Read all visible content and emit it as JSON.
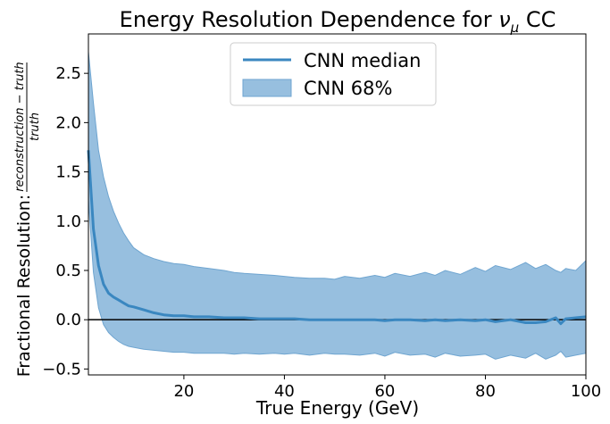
{
  "chart_data": {
    "type": "area",
    "title_prefix": "Energy Resolution Dependence for ",
    "title_symbol": "ν",
    "title_subscript": "μ",
    "title_suffix": " CC",
    "xlabel": "True Energy (GeV)",
    "ylabel_prefix": "Fractional Resolution: ",
    "ylabel_numerator": "reconstruction − truth",
    "ylabel_denominator": "truth",
    "xlim": [
      1,
      100
    ],
    "ylim": [
      -0.56,
      2.9
    ],
    "x_ticks": [
      20,
      40,
      60,
      80,
      100
    ],
    "y_ticks": [
      -0.5,
      0.0,
      0.5,
      1.0,
      1.5,
      2.0,
      2.5
    ],
    "x_tick_labels": [
      "20",
      "40",
      "60",
      "80",
      "100"
    ],
    "y_tick_labels": [
      "−0.5",
      "0.0",
      "0.5",
      "1.0",
      "1.5",
      "2.0",
      "2.5"
    ],
    "reference_line_y": 0.0,
    "legend_position": "top-center",
    "colors": {
      "median": "#3a87c0",
      "band_fill": "#97bfdf",
      "band_edge": "#6fa5d0",
      "reference": "#000000"
    },
    "series": [
      {
        "name": "CNN median",
        "kind": "line",
        "x": [
          1,
          2,
          3,
          4,
          5,
          6,
          7,
          8,
          9,
          10,
          12,
          14,
          16,
          18,
          20,
          22,
          25,
          28,
          30,
          32,
          35,
          38,
          40,
          42,
          45,
          48,
          50,
          52,
          55,
          58,
          60,
          62,
          65,
          68,
          70,
          72,
          75,
          78,
          80,
          82,
          85,
          88,
          90,
          92,
          94,
          95,
          96,
          98,
          100
        ],
        "y": [
          1.72,
          0.92,
          0.55,
          0.36,
          0.27,
          0.23,
          0.2,
          0.17,
          0.14,
          0.13,
          0.1,
          0.07,
          0.05,
          0.04,
          0.04,
          0.03,
          0.03,
          0.02,
          0.02,
          0.02,
          0.01,
          0.01,
          0.01,
          0.01,
          0.0,
          0.0,
          0.0,
          0.0,
          0.0,
          0.0,
          -0.01,
          0.0,
          0.0,
          -0.01,
          0.0,
          -0.01,
          0.0,
          -0.01,
          0.0,
          -0.02,
          0.0,
          -0.03,
          -0.03,
          -0.02,
          0.02,
          -0.04,
          0.01,
          0.02,
          0.03
        ]
      },
      {
        "name": "CNN 68%",
        "kind": "band",
        "x": [
          1,
          2,
          3,
          4,
          5,
          6,
          7,
          8,
          9,
          10,
          12,
          14,
          16,
          18,
          20,
          22,
          25,
          28,
          30,
          32,
          35,
          38,
          40,
          42,
          45,
          48,
          50,
          52,
          55,
          58,
          60,
          62,
          65,
          68,
          70,
          72,
          75,
          78,
          80,
          82,
          85,
          88,
          90,
          92,
          94,
          95,
          96,
          98,
          100
        ],
        "lower": [
          1.22,
          0.48,
          0.12,
          -0.05,
          -0.13,
          -0.18,
          -0.22,
          -0.25,
          -0.27,
          -0.28,
          -0.3,
          -0.31,
          -0.32,
          -0.33,
          -0.33,
          -0.34,
          -0.34,
          -0.34,
          -0.35,
          -0.34,
          -0.35,
          -0.34,
          -0.35,
          -0.34,
          -0.36,
          -0.34,
          -0.35,
          -0.35,
          -0.36,
          -0.34,
          -0.37,
          -0.33,
          -0.36,
          -0.35,
          -0.38,
          -0.34,
          -0.37,
          -0.36,
          -0.35,
          -0.4,
          -0.36,
          -0.39,
          -0.34,
          -0.4,
          -0.36,
          -0.32,
          -0.38,
          -0.36,
          -0.34
        ],
        "upper": [
          2.72,
          2.2,
          1.72,
          1.45,
          1.25,
          1.1,
          0.98,
          0.88,
          0.8,
          0.73,
          0.66,
          0.62,
          0.59,
          0.57,
          0.56,
          0.54,
          0.52,
          0.5,
          0.48,
          0.47,
          0.46,
          0.45,
          0.44,
          0.43,
          0.42,
          0.42,
          0.41,
          0.44,
          0.42,
          0.45,
          0.43,
          0.47,
          0.44,
          0.48,
          0.45,
          0.5,
          0.46,
          0.53,
          0.49,
          0.55,
          0.51,
          0.58,
          0.52,
          0.56,
          0.5,
          0.48,
          0.52,
          0.5,
          0.6
        ]
      }
    ]
  }
}
